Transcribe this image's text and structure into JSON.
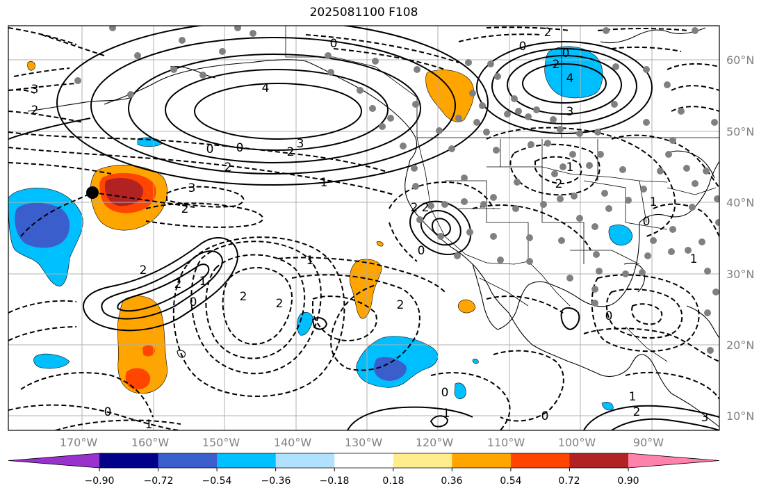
{
  "title": "2025081100 F108",
  "lat_labels": [
    "60°N",
    "50°N",
    "40°N",
    "30°N",
    "20°N",
    "10°N"
  ],
  "lon_labels": [
    "170°W",
    "160°W",
    "150°W",
    "140°W",
    "130°W",
    "120°W",
    "110°W",
    "100°W",
    "90°W"
  ],
  "colorbar": {
    "ticks": [
      "−0.90",
      "−0.72",
      "−0.54",
      "−0.36",
      "−0.18",
      "0.18",
      "0.36",
      "0.54",
      "0.72",
      "0.90"
    ],
    "colors": [
      "#9932cc",
      "#00008b",
      "#3a5fcd",
      "#00bfff",
      "#b0e2ff",
      "#ffffff",
      "#ffec8b",
      "#ffa500",
      "#ff4500",
      "#b22222",
      "#ff82ab"
    ]
  },
  "contour_labels": [
    "4",
    "3",
    "2",
    "0",
    "0",
    "0",
    "2",
    "2",
    "1",
    "3",
    "2",
    "4",
    "3",
    "2",
    "0",
    "0",
    "3",
    "2",
    "2",
    "2",
    "2",
    "0",
    "1",
    "2",
    "1",
    "0",
    "2",
    "2",
    "2",
    "0",
    "1",
    "1",
    "0",
    "0",
    "1",
    "0",
    "3",
    "2",
    "1",
    "0",
    "1",
    "2",
    "1"
  ]
}
